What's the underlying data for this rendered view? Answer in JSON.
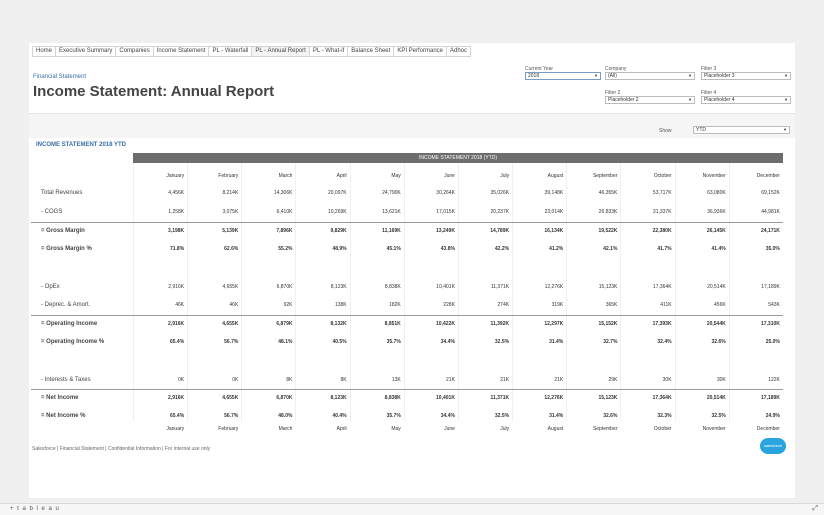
{
  "tabs": [
    "Home",
    "Executive Summary",
    "Companies",
    "Income Statement",
    "PL - Waterfall",
    "PL - Annual Report",
    "PL - What-if",
    "Balance Sheet",
    "KPI Performance",
    "Adhoc"
  ],
  "header": {
    "subtitle": "Financial Statement",
    "title": "Income Statement: Annual Report"
  },
  "filters": {
    "current_year": {
      "label": "Current Year",
      "value": "2018"
    },
    "company": {
      "label": "Company",
      "value": "(All)"
    },
    "filter3": {
      "label": "Filter 3",
      "value": "Placeholder 3"
    },
    "filter2": {
      "label": "Filter 2",
      "value": "Placeholder 2"
    },
    "filter4": {
      "label": "Filter 4",
      "value": "Placeholder 4"
    }
  },
  "show": {
    "label": "Show",
    "value": "YTD"
  },
  "report": {
    "heading": "INCOME STATEMENT 2018 YTD",
    "bar_title": "INCOME STATEMENT 2018 (YTD)",
    "months": [
      "January",
      "February",
      "March",
      "April",
      "May",
      "June",
      "July",
      "August",
      "September",
      "October",
      "November",
      "December"
    ],
    "rows": [
      {
        "label": "Total Revenues",
        "values": [
          "4,456K",
          "8,214K",
          "14,306K",
          "20,097K",
          "24,790K",
          "30,264K",
          "35,026K",
          "39,148K",
          "46,355K",
          "53,717K",
          "63,080K",
          "69,152K"
        ]
      },
      {
        "label": "- COGS",
        "values": [
          "1,258K",
          "3,075K",
          "6,410K",
          "10,269K",
          "13,621K",
          "17,015K",
          "20,237K",
          "23,014K",
          "26,833K",
          "31,337K",
          "36,936K",
          "44,981K"
        ]
      },
      {
        "label": "= Gross Margin",
        "values": [
          "3,198K",
          "5,139K",
          "7,896K",
          "9,829K",
          "11,169K",
          "13,249K",
          "14,789K",
          "16,134K",
          "19,522K",
          "22,380K",
          "26,145K",
          "24,171K"
        ]
      },
      {
        "label": "= Gross Margin %",
        "values": [
          "71.8%",
          "62.6%",
          "55.2%",
          "48.9%",
          "45.1%",
          "43.8%",
          "42.2%",
          "41.2%",
          "42.1%",
          "41.7%",
          "41.4%",
          "35.0%"
        ]
      },
      {
        "label": "- OpEx",
        "values": [
          "2,916K",
          "4,655K",
          "6,870K",
          "8,123K",
          "8,838K",
          "10,401K",
          "11,371K",
          "12,276K",
          "15,123K",
          "17,364K",
          "20,514K",
          "17,189K"
        ]
      },
      {
        "label": "- Deprec. & Amort.",
        "values": [
          "46K",
          "46K",
          "92K",
          "138K",
          "182K",
          "228K",
          "274K",
          "319K",
          "365K",
          "411K",
          "456K",
          "543K"
        ]
      },
      {
        "label": "= Operating Income",
        "values": [
          "2,916K",
          "4,655K",
          "6,879K",
          "8,132K",
          "8,851K",
          "10,422K",
          "11,392K",
          "12,297K",
          "15,152K",
          "17,393K",
          "20,544K",
          "17,310K"
        ]
      },
      {
        "label": "= Operating Income %",
        "values": [
          "65.4%",
          "56.7%",
          "48.1%",
          "40.5%",
          "35.7%",
          "34.4%",
          "32.5%",
          "31.4%",
          "32.7%",
          "32.4%",
          "32.6%",
          "25.0%"
        ]
      },
      {
        "label": "- Interests & Taxes",
        "values": [
          "0K",
          "0K",
          "8K",
          "8K",
          "13K",
          "21K",
          "21K",
          "21K",
          "29K",
          "30K",
          "30K",
          "122K"
        ]
      },
      {
        "label": "= Net Income",
        "values": [
          "2,916K",
          "4,655K",
          "6,870K",
          "8,123K",
          "8,838K",
          "10,401K",
          "11,371K",
          "12,276K",
          "15,123K",
          "17,364K",
          "20,514K",
          "17,189K"
        ]
      },
      {
        "label": "= Net Income %",
        "values": [
          "65.4%",
          "56.7%",
          "48.0%",
          "40.4%",
          "35.7%",
          "34.4%",
          "32.5%",
          "31.4%",
          "32.6%",
          "32.3%",
          "32.5%",
          "24.9%"
        ]
      }
    ]
  },
  "footer": "Salesforce | Financial Statement | Confidential Information | For internal use only",
  "logo_text": "salesforce",
  "tableau": "+ t a b l e a u"
}
